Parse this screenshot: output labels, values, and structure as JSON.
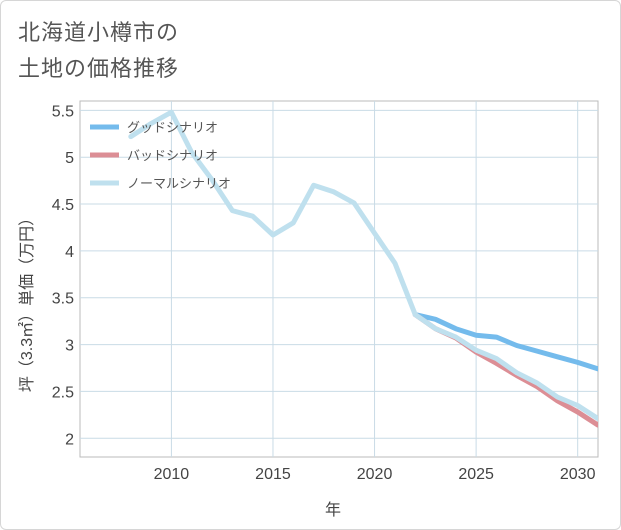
{
  "chart_data": {
    "type": "line",
    "title": "北海道小樽市の\n土地の価格推移",
    "xlabel": "年",
    "ylabel": "坪（3.3㎡）単価（万円）",
    "xlim": [
      2005.5,
      2031
    ],
    "ylim": [
      1.8,
      5.6
    ],
    "xticks": [
      2010,
      2015,
      2020,
      2025,
      2030
    ],
    "yticks": [
      2,
      2.5,
      3,
      3.5,
      4,
      4.5,
      5,
      5.5
    ],
    "xtick_labels": [
      "2010",
      "2015",
      "2020",
      "2025",
      "2030"
    ],
    "ytick_labels": [
      "2",
      "2.5",
      "3",
      "3.5",
      "4",
      "4.5",
      "5",
      "5.5"
    ],
    "grid": true,
    "legend_position": "top-left",
    "series": [
      {
        "name": "グッドシナリオ",
        "color": "#74bbec",
        "x": [
          2022,
          2023,
          2024,
          2025,
          2026,
          2027,
          2028,
          2029,
          2030,
          2031
        ],
        "values": [
          3.32,
          3.27,
          3.17,
          3.1,
          3.08,
          2.99,
          2.93,
          2.87,
          2.81,
          2.74
        ]
      },
      {
        "name": "バッドシナリオ",
        "color": "#dc8e95",
        "x": [
          2022,
          2023,
          2024,
          2025,
          2026,
          2027,
          2028,
          2029,
          2030,
          2031
        ],
        "values": [
          3.32,
          3.17,
          3.07,
          2.92,
          2.8,
          2.67,
          2.55,
          2.4,
          2.28,
          2.14
        ]
      },
      {
        "name": "ノーマルシナリオ",
        "color": "#bfe0ee",
        "x": [
          2008,
          2009,
          2010,
          2011,
          2012,
          2013,
          2014,
          2015,
          2016,
          2017,
          2018,
          2019,
          2020,
          2021,
          2022,
          2023,
          2024,
          2025,
          2026,
          2027,
          2028,
          2029,
          2030,
          2031
        ],
        "values": [
          5.22,
          5.36,
          5.48,
          5.05,
          4.76,
          4.43,
          4.37,
          4.17,
          4.3,
          4.7,
          4.63,
          4.51,
          4.19,
          3.87,
          3.32,
          3.17,
          3.08,
          2.94,
          2.85,
          2.7,
          2.59,
          2.44,
          2.35,
          2.21
        ]
      }
    ]
  }
}
